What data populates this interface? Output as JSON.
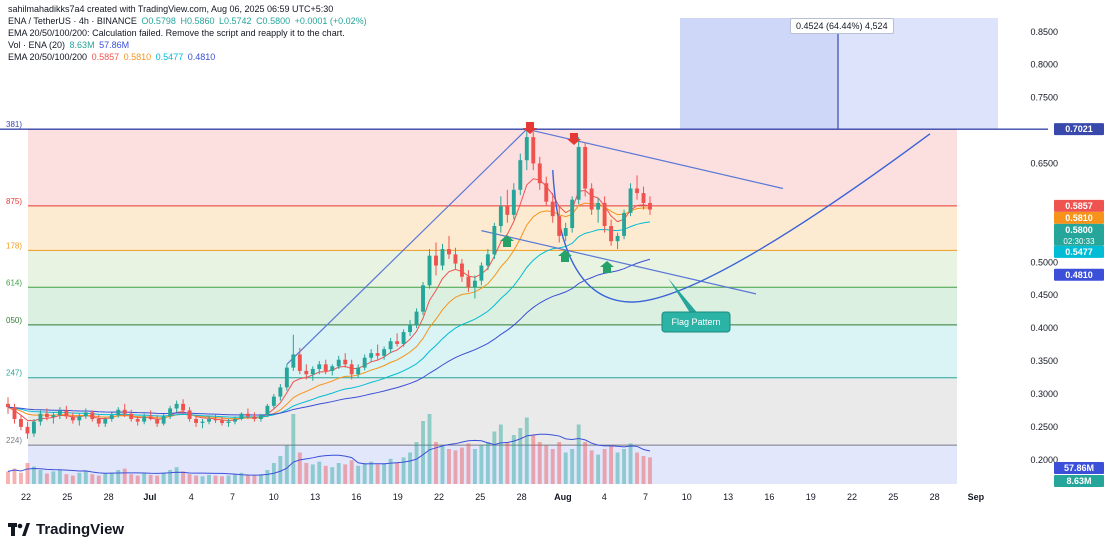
{
  "header": {
    "credit": "sahilmahadikks7a4 created with TradingView.com, Aug 06, 2025 06:59 UTC+5:30",
    "symbol": "ENA / TetherUS · 4h · BINANCE",
    "open": "O0.5798",
    "high": "H0.5860",
    "low": "L0.5742",
    "close": "C0.5800",
    "change": "+0.0001 (+0.02%)",
    "ema_error": "EMA 20/50/100/200: Calculation failed. Remove the script and reapply it to the chart.",
    "vol_label": "Vol · ENA (20)",
    "vol_value_1": "8.63M",
    "vol_value_2": "57.86M",
    "ema_label": "EMA 20/50/100/200",
    "ema20": "0.5857",
    "ema50": "0.5810",
    "ema100": "0.5477",
    "ema200": "0.4810"
  },
  "brand": "TradingView",
  "measure_label": "0.4524 (64.44%) 4,524",
  "annotation": "Flag Pattern",
  "colors": {
    "up": "#26a69a",
    "down": "#ef5350",
    "ema20": "#ef5350",
    "ema50": "#f7931a",
    "ema100": "#00bcd4",
    "ema200": "#3b4fd8",
    "trendline": "#5a78d6",
    "arrow_down": "#e53935",
    "arrow_up": "#26a269"
  },
  "chart_data": {
    "type": "candlestick",
    "price_axis": {
      "min": 0.18,
      "max": 0.88,
      "ticks": [
        "0.8500",
        "0.8000",
        "0.7500",
        "0.6500",
        "0.5000",
        "0.4500",
        "0.4000",
        "0.3500",
        "0.3000",
        "0.2500",
        "0.2000"
      ]
    },
    "time_axis": {
      "labels": [
        "22",
        "25",
        "28",
        "Jul",
        "4",
        "7",
        "10",
        "13",
        "16",
        "19",
        "22",
        "25",
        "28",
        "Aug",
        "4",
        "7",
        "10",
        "13",
        "16",
        "19",
        "22",
        "25",
        "28",
        "Sep"
      ]
    },
    "fib_levels": [
      {
        "label": "381)",
        "price": 0.7021,
        "color": "#3949ab"
      },
      {
        "label": "875)",
        "price": 0.5857,
        "color": "#e53935"
      },
      {
        "label": "178)",
        "price": 0.518,
        "color": "#f29b1e"
      },
      {
        "label": "614)",
        "price": 0.462,
        "color": "#43a047"
      },
      {
        "label": "050)",
        "price": 0.405,
        "color": "#2e7d32"
      },
      {
        "label": "247)",
        "price": 0.3247,
        "color": "#26a69a"
      },
      {
        "label": "224)",
        "price": 0.2224,
        "color": "#787b86"
      }
    ],
    "price_badges": [
      {
        "text": "0.7021",
        "price": 0.7021,
        "color": "#3949ab"
      },
      {
        "text": "0.5857",
        "price": 0.5857,
        "color": "#ef5350"
      },
      {
        "text": "0.5810",
        "price": 0.581,
        "color": "#f7931a"
      },
      {
        "text": "0.5800",
        "price": 0.58,
        "color": "#26a69a",
        "sub": "02:30:33"
      },
      {
        "text": "0.5477",
        "price": 0.5477,
        "color": "#00bcd4"
      },
      {
        "text": "0.4810",
        "price": 0.481,
        "color": "#3b4fd8"
      }
    ],
    "volume_badges": [
      {
        "text": "57.86M",
        "color": "#3b4fd8"
      },
      {
        "text": "8.63M",
        "color": "#26a69a"
      }
    ],
    "candles": [
      [
        0.285,
        0.295,
        0.27,
        0.28
      ],
      [
        0.28,
        0.285,
        0.255,
        0.262
      ],
      [
        0.262,
        0.268,
        0.245,
        0.25
      ],
      [
        0.25,
        0.258,
        0.232,
        0.24
      ],
      [
        0.24,
        0.262,
        0.235,
        0.258
      ],
      [
        0.258,
        0.275,
        0.252,
        0.27
      ],
      [
        0.27,
        0.278,
        0.26,
        0.265
      ],
      [
        0.265,
        0.272,
        0.255,
        0.268
      ],
      [
        0.268,
        0.28,
        0.262,
        0.275
      ],
      [
        0.275,
        0.282,
        0.262,
        0.266
      ],
      [
        0.266,
        0.272,
        0.255,
        0.26
      ],
      [
        0.26,
        0.27,
        0.252,
        0.266
      ],
      [
        0.266,
        0.278,
        0.262,
        0.272
      ],
      [
        0.272,
        0.275,
        0.258,
        0.262
      ],
      [
        0.262,
        0.268,
        0.25,
        0.255
      ],
      [
        0.255,
        0.265,
        0.25,
        0.262
      ],
      [
        0.262,
        0.272,
        0.258,
        0.268
      ],
      [
        0.268,
        0.28,
        0.264,
        0.276
      ],
      [
        0.276,
        0.285,
        0.265,
        0.27
      ],
      [
        0.27,
        0.276,
        0.258,
        0.262
      ],
      [
        0.262,
        0.266,
        0.252,
        0.258
      ],
      [
        0.258,
        0.27,
        0.254,
        0.266
      ],
      [
        0.266,
        0.275,
        0.26,
        0.262
      ],
      [
        0.262,
        0.268,
        0.25,
        0.255
      ],
      [
        0.255,
        0.27,
        0.252,
        0.266
      ],
      [
        0.266,
        0.282,
        0.262,
        0.278
      ],
      [
        0.278,
        0.29,
        0.272,
        0.285
      ],
      [
        0.285,
        0.292,
        0.27,
        0.275
      ],
      [
        0.275,
        0.28,
        0.258,
        0.262
      ],
      [
        0.262,
        0.268,
        0.25,
        0.256
      ],
      [
        0.256,
        0.262,
        0.248,
        0.258
      ],
      [
        0.258,
        0.266,
        0.254,
        0.262
      ],
      [
        0.262,
        0.27,
        0.256,
        0.26
      ],
      [
        0.26,
        0.265,
        0.252,
        0.256
      ],
      [
        0.256,
        0.262,
        0.25,
        0.258
      ],
      [
        0.258,
        0.266,
        0.254,
        0.262
      ],
      [
        0.262,
        0.272,
        0.26,
        0.27
      ],
      [
        0.27,
        0.278,
        0.262,
        0.266
      ],
      [
        0.266,
        0.272,
        0.258,
        0.262
      ],
      [
        0.262,
        0.27,
        0.258,
        0.268
      ],
      [
        0.268,
        0.285,
        0.265,
        0.282
      ],
      [
        0.282,
        0.3,
        0.278,
        0.296
      ],
      [
        0.296,
        0.315,
        0.29,
        0.31
      ],
      [
        0.31,
        0.345,
        0.305,
        0.34
      ],
      [
        0.34,
        0.39,
        0.335,
        0.36
      ],
      [
        0.36,
        0.37,
        0.33,
        0.335
      ],
      [
        0.335,
        0.345,
        0.322,
        0.33
      ],
      [
        0.33,
        0.342,
        0.32,
        0.338
      ],
      [
        0.338,
        0.35,
        0.33,
        0.345
      ],
      [
        0.345,
        0.352,
        0.33,
        0.335
      ],
      [
        0.335,
        0.345,
        0.328,
        0.342
      ],
      [
        0.342,
        0.358,
        0.338,
        0.352
      ],
      [
        0.352,
        0.362,
        0.34,
        0.345
      ],
      [
        0.345,
        0.352,
        0.322,
        0.33
      ],
      [
        0.33,
        0.345,
        0.325,
        0.34
      ],
      [
        0.34,
        0.36,
        0.336,
        0.355
      ],
      [
        0.355,
        0.368,
        0.348,
        0.362
      ],
      [
        0.362,
        0.375,
        0.352,
        0.358
      ],
      [
        0.358,
        0.372,
        0.352,
        0.368
      ],
      [
        0.368,
        0.385,
        0.362,
        0.38
      ],
      [
        0.38,
        0.392,
        0.372,
        0.376
      ],
      [
        0.376,
        0.398,
        0.372,
        0.394
      ],
      [
        0.394,
        0.412,
        0.388,
        0.405
      ],
      [
        0.405,
        0.43,
        0.4,
        0.425
      ],
      [
        0.425,
        0.47,
        0.42,
        0.465
      ],
      [
        0.465,
        0.52,
        0.46,
        0.51
      ],
      [
        0.51,
        0.53,
        0.48,
        0.495
      ],
      [
        0.495,
        0.528,
        0.488,
        0.52
      ],
      [
        0.52,
        0.54,
        0.505,
        0.512
      ],
      [
        0.512,
        0.522,
        0.49,
        0.498
      ],
      [
        0.498,
        0.505,
        0.47,
        0.478
      ],
      [
        0.478,
        0.488,
        0.455,
        0.462
      ],
      [
        0.462,
        0.48,
        0.445,
        0.472
      ],
      [
        0.472,
        0.5,
        0.465,
        0.495
      ],
      [
        0.495,
        0.52,
        0.488,
        0.512
      ],
      [
        0.512,
        0.56,
        0.505,
        0.555
      ],
      [
        0.555,
        0.6,
        0.545,
        0.585
      ],
      [
        0.585,
        0.61,
        0.56,
        0.572
      ],
      [
        0.572,
        0.62,
        0.565,
        0.61
      ],
      [
        0.61,
        0.665,
        0.602,
        0.655
      ],
      [
        0.655,
        0.702,
        0.64,
        0.69
      ],
      [
        0.69,
        0.698,
        0.64,
        0.65
      ],
      [
        0.65,
        0.66,
        0.61,
        0.62
      ],
      [
        0.62,
        0.63,
        0.585,
        0.592
      ],
      [
        0.592,
        0.605,
        0.56,
        0.57
      ],
      [
        0.57,
        0.585,
        0.53,
        0.54
      ],
      [
        0.54,
        0.56,
        0.532,
        0.552
      ],
      [
        0.552,
        0.6,
        0.545,
        0.595
      ],
      [
        0.595,
        0.69,
        0.588,
        0.675
      ],
      [
        0.675,
        0.682,
        0.6,
        0.612
      ],
      [
        0.612,
        0.62,
        0.572,
        0.58
      ],
      [
        0.58,
        0.598,
        0.56,
        0.59
      ],
      [
        0.59,
        0.6,
        0.545,
        0.555
      ],
      [
        0.555,
        0.565,
        0.525,
        0.532
      ],
      [
        0.532,
        0.545,
        0.52,
        0.54
      ],
      [
        0.54,
        0.58,
        0.535,
        0.575
      ],
      [
        0.575,
        0.62,
        0.57,
        0.612
      ],
      [
        0.612,
        0.632,
        0.595,
        0.605
      ],
      [
        0.605,
        0.615,
        0.58,
        0.59
      ],
      [
        0.59,
        0.6,
        0.572,
        0.58
      ]
    ],
    "volumes": [
      0.18,
      0.22,
      0.16,
      0.3,
      0.25,
      0.2,
      0.15,
      0.18,
      0.2,
      0.14,
      0.12,
      0.16,
      0.18,
      0.14,
      0.12,
      0.15,
      0.16,
      0.2,
      0.22,
      0.14,
      0.12,
      0.15,
      0.13,
      0.12,
      0.16,
      0.2,
      0.24,
      0.18,
      0.14,
      0.12,
      0.11,
      0.13,
      0.12,
      0.11,
      0.12,
      0.14,
      0.16,
      0.13,
      0.12,
      0.14,
      0.2,
      0.3,
      0.4,
      0.55,
      1.0,
      0.45,
      0.3,
      0.28,
      0.32,
      0.26,
      0.24,
      0.3,
      0.28,
      0.34,
      0.26,
      0.3,
      0.32,
      0.28,
      0.3,
      0.36,
      0.3,
      0.38,
      0.45,
      0.6,
      0.9,
      1.0,
      0.6,
      0.55,
      0.5,
      0.48,
      0.52,
      0.58,
      0.5,
      0.55,
      0.6,
      0.75,
      0.85,
      0.6,
      0.7,
      0.8,
      0.95,
      0.7,
      0.6,
      0.55,
      0.5,
      0.6,
      0.45,
      0.5,
      0.85,
      0.6,
      0.48,
      0.42,
      0.5,
      0.55,
      0.45,
      0.5,
      0.58,
      0.45,
      0.4,
      0.38
    ]
  }
}
